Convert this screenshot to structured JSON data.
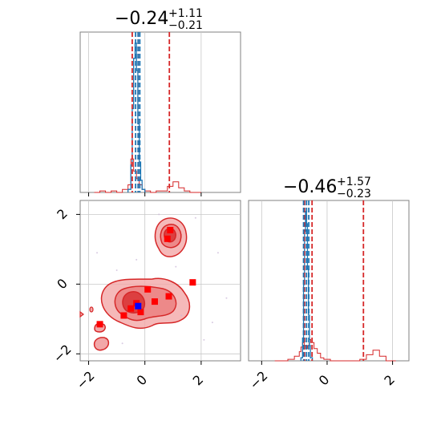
{
  "figure": {
    "panel_top_title": {
      "main": "−0.24",
      "sup": "+1.11",
      "sub": "−0.21"
    },
    "panel_right_title": {
      "main": "−0.46",
      "sup": "+1.57",
      "sub": "−0.23"
    }
  },
  "colors": {
    "red": "#d62728",
    "red_fill": "#f2a7a8",
    "blue": "#1f77b4",
    "marker_blue": "#0000ff",
    "marker_red": "#ff0000",
    "grid": "#c8c8c8",
    "frame": "#808080"
  },
  "chart_data": [
    {
      "type": "histogram",
      "panel": "top-left",
      "title": "−0.24 +1.11 −0.21",
      "xlim": [
        -2.3,
        3.4
      ],
      "grid": true,
      "x_ticks": [
        -2,
        0,
        2
      ],
      "red_step": {
        "bin_edges": [
          -1.8,
          -1.6,
          -1.4,
          -1.2,
          -1.0,
          -0.8,
          -0.6,
          -0.5,
          -0.4,
          -0.3,
          -0.2,
          -0.1,
          0.0,
          0.2,
          0.4,
          0.6,
          0.8,
          1.0,
          1.2,
          1.4,
          1.6,
          2.0
        ],
        "heights": [
          0.0,
          0.01,
          0.0,
          0.01,
          0.0,
          0.02,
          0.05,
          0.22,
          0.14,
          0.09,
          0.05,
          0.02,
          0.01,
          0.0,
          0.01,
          0.01,
          0.04,
          0.07,
          0.03,
          0.01,
          0.0
        ]
      },
      "blue_step": {
        "bin_edges": [
          -0.6,
          -0.5,
          -0.45,
          -0.4,
          -0.35,
          -0.3,
          -0.25,
          -0.2,
          -0.15,
          -0.1,
          0.0
        ],
        "heights": [
          0.02,
          0.18,
          0.55,
          0.88,
          0.98,
          0.8,
          0.45,
          0.2,
          0.08,
          0.02
        ]
      },
      "red_quantile_lines": [
        -0.45,
        -0.24,
        0.87
      ],
      "blue_quantile_lines": [
        -0.33,
        -0.24,
        -0.18
      ]
    },
    {
      "type": "contour",
      "panel": "bottom-left",
      "xlim": [
        -2.3,
        3.4
      ],
      "ylim": [
        -2.2,
        2.4
      ],
      "grid": true,
      "x_ticks": [
        -2,
        0,
        2
      ],
      "y_ticks": [
        -2,
        0,
        2
      ],
      "red_points": [
        [
          -0.75,
          -0.9
        ],
        [
          -0.5,
          -0.7
        ],
        [
          -0.3,
          -0.55
        ],
        [
          -0.15,
          -0.8
        ],
        [
          0.1,
          -0.15
        ],
        [
          0.35,
          -0.5
        ],
        [
          0.85,
          -0.35
        ],
        [
          1.7,
          0.05
        ],
        [
          0.8,
          1.3
        ],
        [
          0.9,
          1.55
        ],
        [
          -1.6,
          -1.15
        ]
      ],
      "blue_points": [
        [
          -0.24,
          -0.63
        ]
      ],
      "scatter_points": [
        [
          -1.0,
          0.4
        ],
        [
          1.3,
          -0.9
        ],
        [
          2.6,
          0.9
        ],
        [
          -0.3,
          0.7
        ],
        [
          2.1,
          -1.6
        ],
        [
          1.8,
          1.9
        ],
        [
          -0.8,
          -1.7
        ],
        [
          2.9,
          -0.4
        ],
        [
          0.5,
          2.0
        ],
        [
          -1.7,
          0.9
        ],
        [
          1.1,
          0.5
        ],
        [
          2.4,
          -1.1
        ]
      ]
    },
    {
      "type": "histogram",
      "panel": "bottom-right",
      "title": "−0.46 +1.57 −0.23",
      "xlim": [
        -2.4,
        2.5
      ],
      "grid": true,
      "x_ticks": [
        -2,
        0,
        2
      ],
      "red_step": {
        "bin_edges": [
          -1.6,
          -1.2,
          -1.0,
          -0.85,
          -0.8,
          -0.75,
          -0.7,
          -0.65,
          -0.6,
          -0.55,
          -0.5,
          -0.4,
          -0.3,
          -0.2,
          -0.1,
          0.1,
          0.3,
          0.6,
          1.0,
          1.2,
          1.4,
          1.6,
          1.8,
          2.1
        ],
        "heights": [
          0.0,
          0.01,
          0.03,
          0.06,
          0.09,
          0.12,
          0.1,
          0.08,
          0.1,
          0.14,
          0.12,
          0.08,
          0.05,
          0.02,
          0.01,
          0.0,
          0.0,
          0.0,
          0.01,
          0.04,
          0.07,
          0.03,
          0.0
        ]
      },
      "blue_step": {
        "bin_edges": [
          -0.8,
          -0.75,
          -0.72,
          -0.69,
          -0.66,
          -0.63,
          -0.6,
          -0.57,
          -0.54,
          -0.51,
          -0.45
        ],
        "heights": [
          0.02,
          0.15,
          0.5,
          0.85,
          0.98,
          0.9,
          0.6,
          0.3,
          0.1,
          0.02
        ]
      },
      "red_quantile_lines": [
        -0.69,
        -0.46,
        1.11
      ],
      "blue_quantile_lines": [
        -0.72,
        -0.63,
        -0.56
      ]
    }
  ]
}
